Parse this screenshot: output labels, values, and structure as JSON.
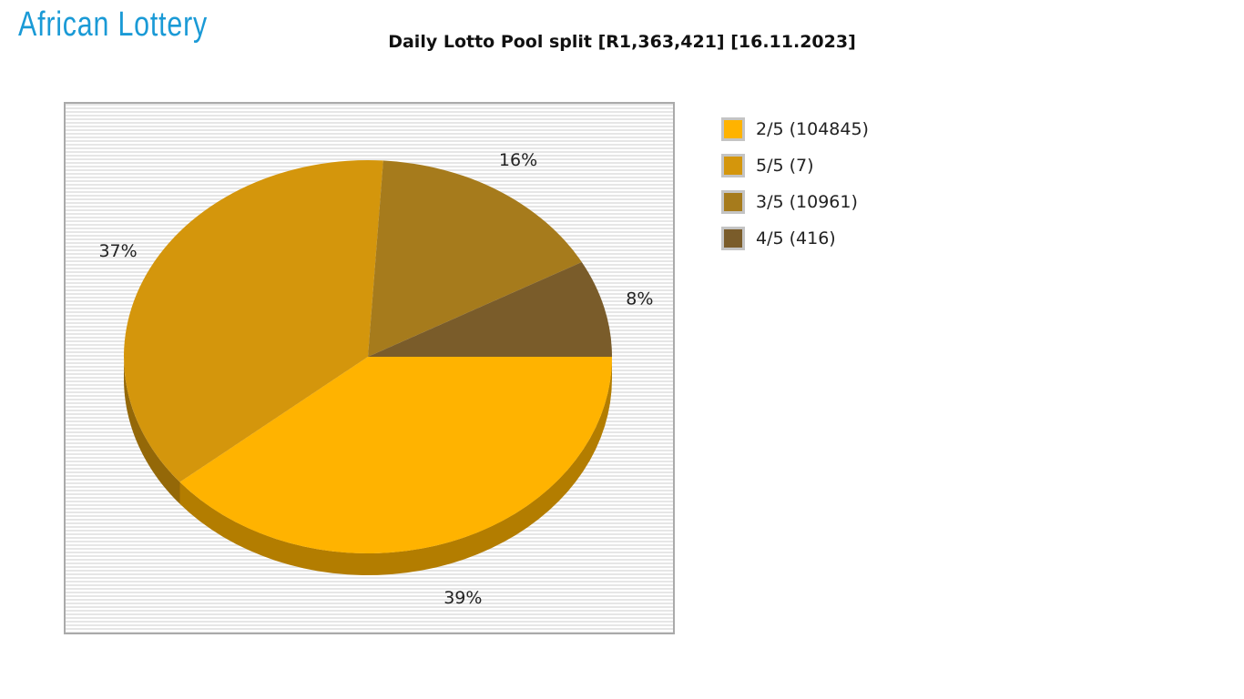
{
  "logo": {
    "text": "African Lottery"
  },
  "chart_data": {
    "type": "pie",
    "title": "Daily Lotto Pool split [R1,363,421] [16.11.2023]",
    "legend_position": "right",
    "slices": [
      {
        "label": "2/5 (104845)",
        "percent": 39,
        "data_label": "39%",
        "color": "#ffb300",
        "side_color": "#b37d00"
      },
      {
        "label": "5/5 (7)",
        "percent": 37,
        "data_label": "37%",
        "color": "#d4960c",
        "side_color": "#946808"
      },
      {
        "label": "3/5 (10961)",
        "percent": 16,
        "data_label": "16%",
        "color": "#a67b1c",
        "side_color": "#745613"
      },
      {
        "label": "4/5 (416)",
        "percent": 8,
        "data_label": "8%",
        "color": "#7a5c2a",
        "side_color": "#55401d"
      }
    ]
  }
}
